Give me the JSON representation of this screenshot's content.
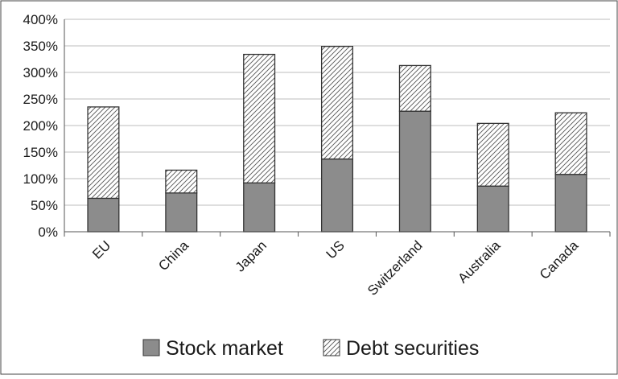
{
  "chart_data": {
    "type": "bar",
    "stacked": true,
    "categories": [
      "EU",
      "China",
      "Japan",
      "US",
      "Switzerland",
      "Australia",
      "Canada"
    ],
    "series": [
      {
        "name": "Stock market",
        "values": [
          63,
          73,
          92,
          137,
          227,
          86,
          108
        ],
        "color": "#8c8c8c",
        "pattern": "solid"
      },
      {
        "name": "Debt securities",
        "values": [
          172,
          43,
          242,
          212,
          86,
          118,
          116
        ],
        "color": "#ffffff",
        "pattern": "diagonal-hatch"
      }
    ],
    "yticks": [
      "0%",
      "50%",
      "100%",
      "150%",
      "200%",
      "250%",
      "300%",
      "350%",
      "400%"
    ],
    "ylim": [
      0,
      400
    ],
    "grid": true,
    "legend": "bottom",
    "title": "",
    "xlabel": "",
    "ylabel": ""
  }
}
